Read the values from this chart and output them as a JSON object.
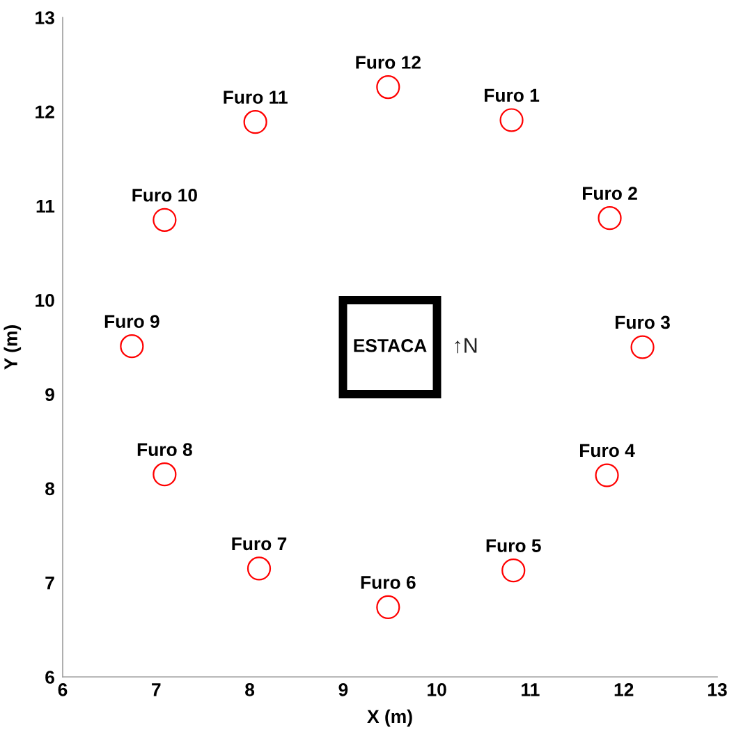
{
  "chart_data": {
    "type": "scatter",
    "xlabel": "X (m)",
    "ylabel": "Y (m)",
    "xlim": [
      6,
      13
    ],
    "ylim": [
      6,
      13
    ],
    "xticks": [
      6,
      7,
      8,
      9,
      10,
      11,
      12,
      13
    ],
    "yticks": [
      6,
      7,
      8,
      9,
      10,
      11,
      12,
      13
    ],
    "series": [
      {
        "color": "#ff0000",
        "marker": "circle",
        "x": [
          10.8,
          11.85,
          12.2,
          11.82,
          10.82,
          9.48,
          8.1,
          7.09,
          6.74,
          7.09,
          8.06,
          9.48
        ],
        "values": [
          11.91,
          10.87,
          9.5,
          8.14,
          7.13,
          6.74,
          7.15,
          8.15,
          9.51,
          10.85,
          11.89,
          12.26
        ],
        "value_labels": [
          "Furo 1",
          "Furo 2",
          "Furo 3",
          "Furo 4",
          "Furo 5",
          "Furo 6",
          "Furo 7",
          "Furo 8",
          "Furo 9",
          "Furo 10",
          "Furo 11",
          "Furo 12"
        ]
      }
    ],
    "annotations": [
      "ESTACA",
      "↑N"
    ],
    "grid": false,
    "legend": false
  }
}
